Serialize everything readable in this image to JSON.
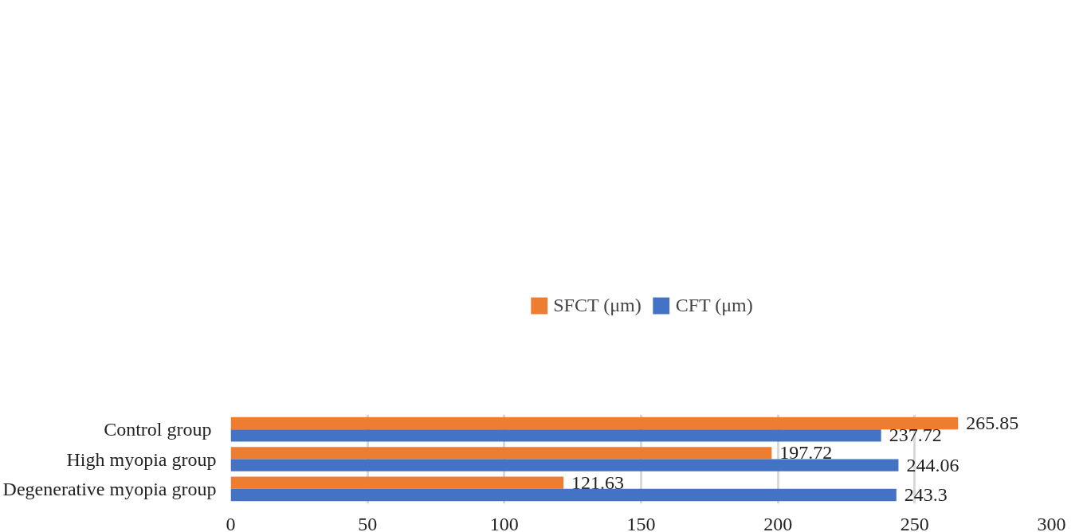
{
  "chart_data": {
    "type": "bar",
    "orientation": "horizontal",
    "categories": [
      "Control  group",
      "High myopia group",
      "Degenerative myopia group"
    ],
    "series": [
      {
        "name": "SFCT (μm)",
        "color": "#ed7d31",
        "values": [
          265.85,
          197.72,
          121.63
        ]
      },
      {
        "name": "CFT (μm)",
        "color": "#4472c4",
        "values": [
          237.72,
          244.06,
          243.3
        ]
      }
    ],
    "xlim": [
      0,
      300
    ],
    "xticks": [
      0,
      50,
      100,
      150,
      200,
      250,
      300
    ],
    "grid": "x",
    "legend": "top",
    "data_labels": true
  }
}
